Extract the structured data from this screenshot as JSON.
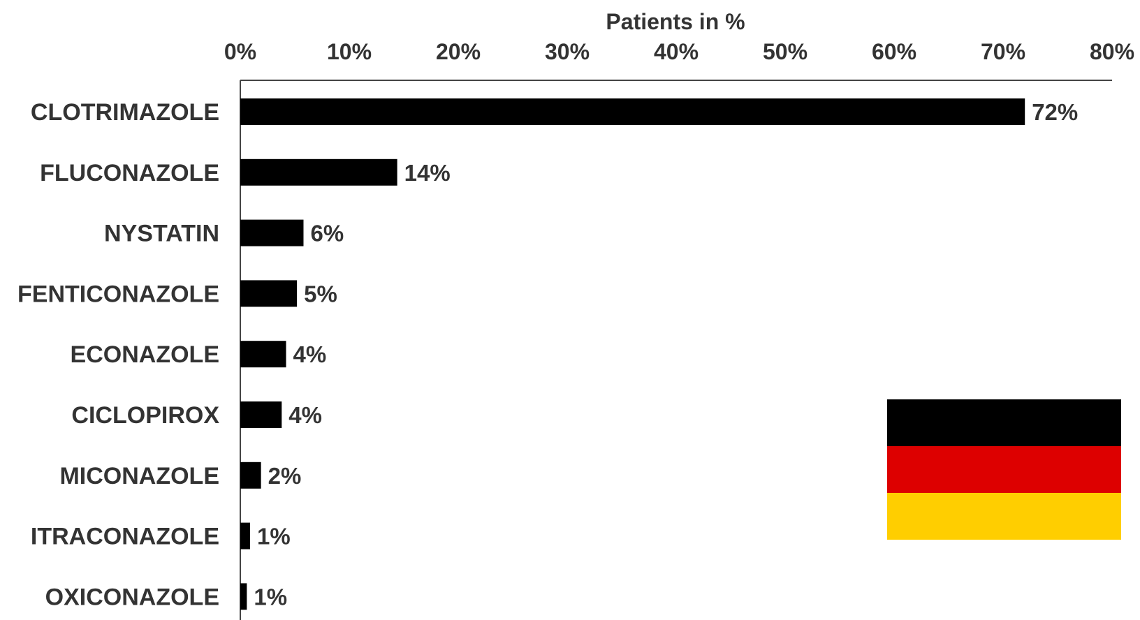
{
  "chart_data": {
    "type": "bar",
    "orientation": "horizontal",
    "title": "",
    "xlabel": "Patients in %",
    "ylabel": "",
    "xlim": [
      0,
      80
    ],
    "x_ticks": [
      "0%",
      "10%",
      "20%",
      "30%",
      "40%",
      "50%",
      "60%",
      "70%",
      "80%"
    ],
    "x_axis_position": "top",
    "grid": false,
    "categories": [
      "CLOTRIMAZOLE",
      "FLUCONAZOLE",
      "NYSTATIN",
      "FENTICONAZOLE",
      "ECONAZOLE",
      "CICLOPIROX",
      "MICONAZOLE",
      "ITRACONAZOLE",
      "OXICONAZOLE"
    ],
    "values": [
      72,
      14.4,
      5.8,
      5.2,
      4.2,
      3.8,
      1.9,
      0.9,
      0.6
    ],
    "data_labels": [
      "72%",
      "14%",
      "6%",
      "5%",
      "4%",
      "4%",
      "2%",
      "1%",
      "1%"
    ],
    "bar_color": "#000000",
    "flag": {
      "icon": "germany-flag",
      "colors": [
        "#000000",
        "#DD0000",
        "#FFCE00"
      ]
    }
  }
}
